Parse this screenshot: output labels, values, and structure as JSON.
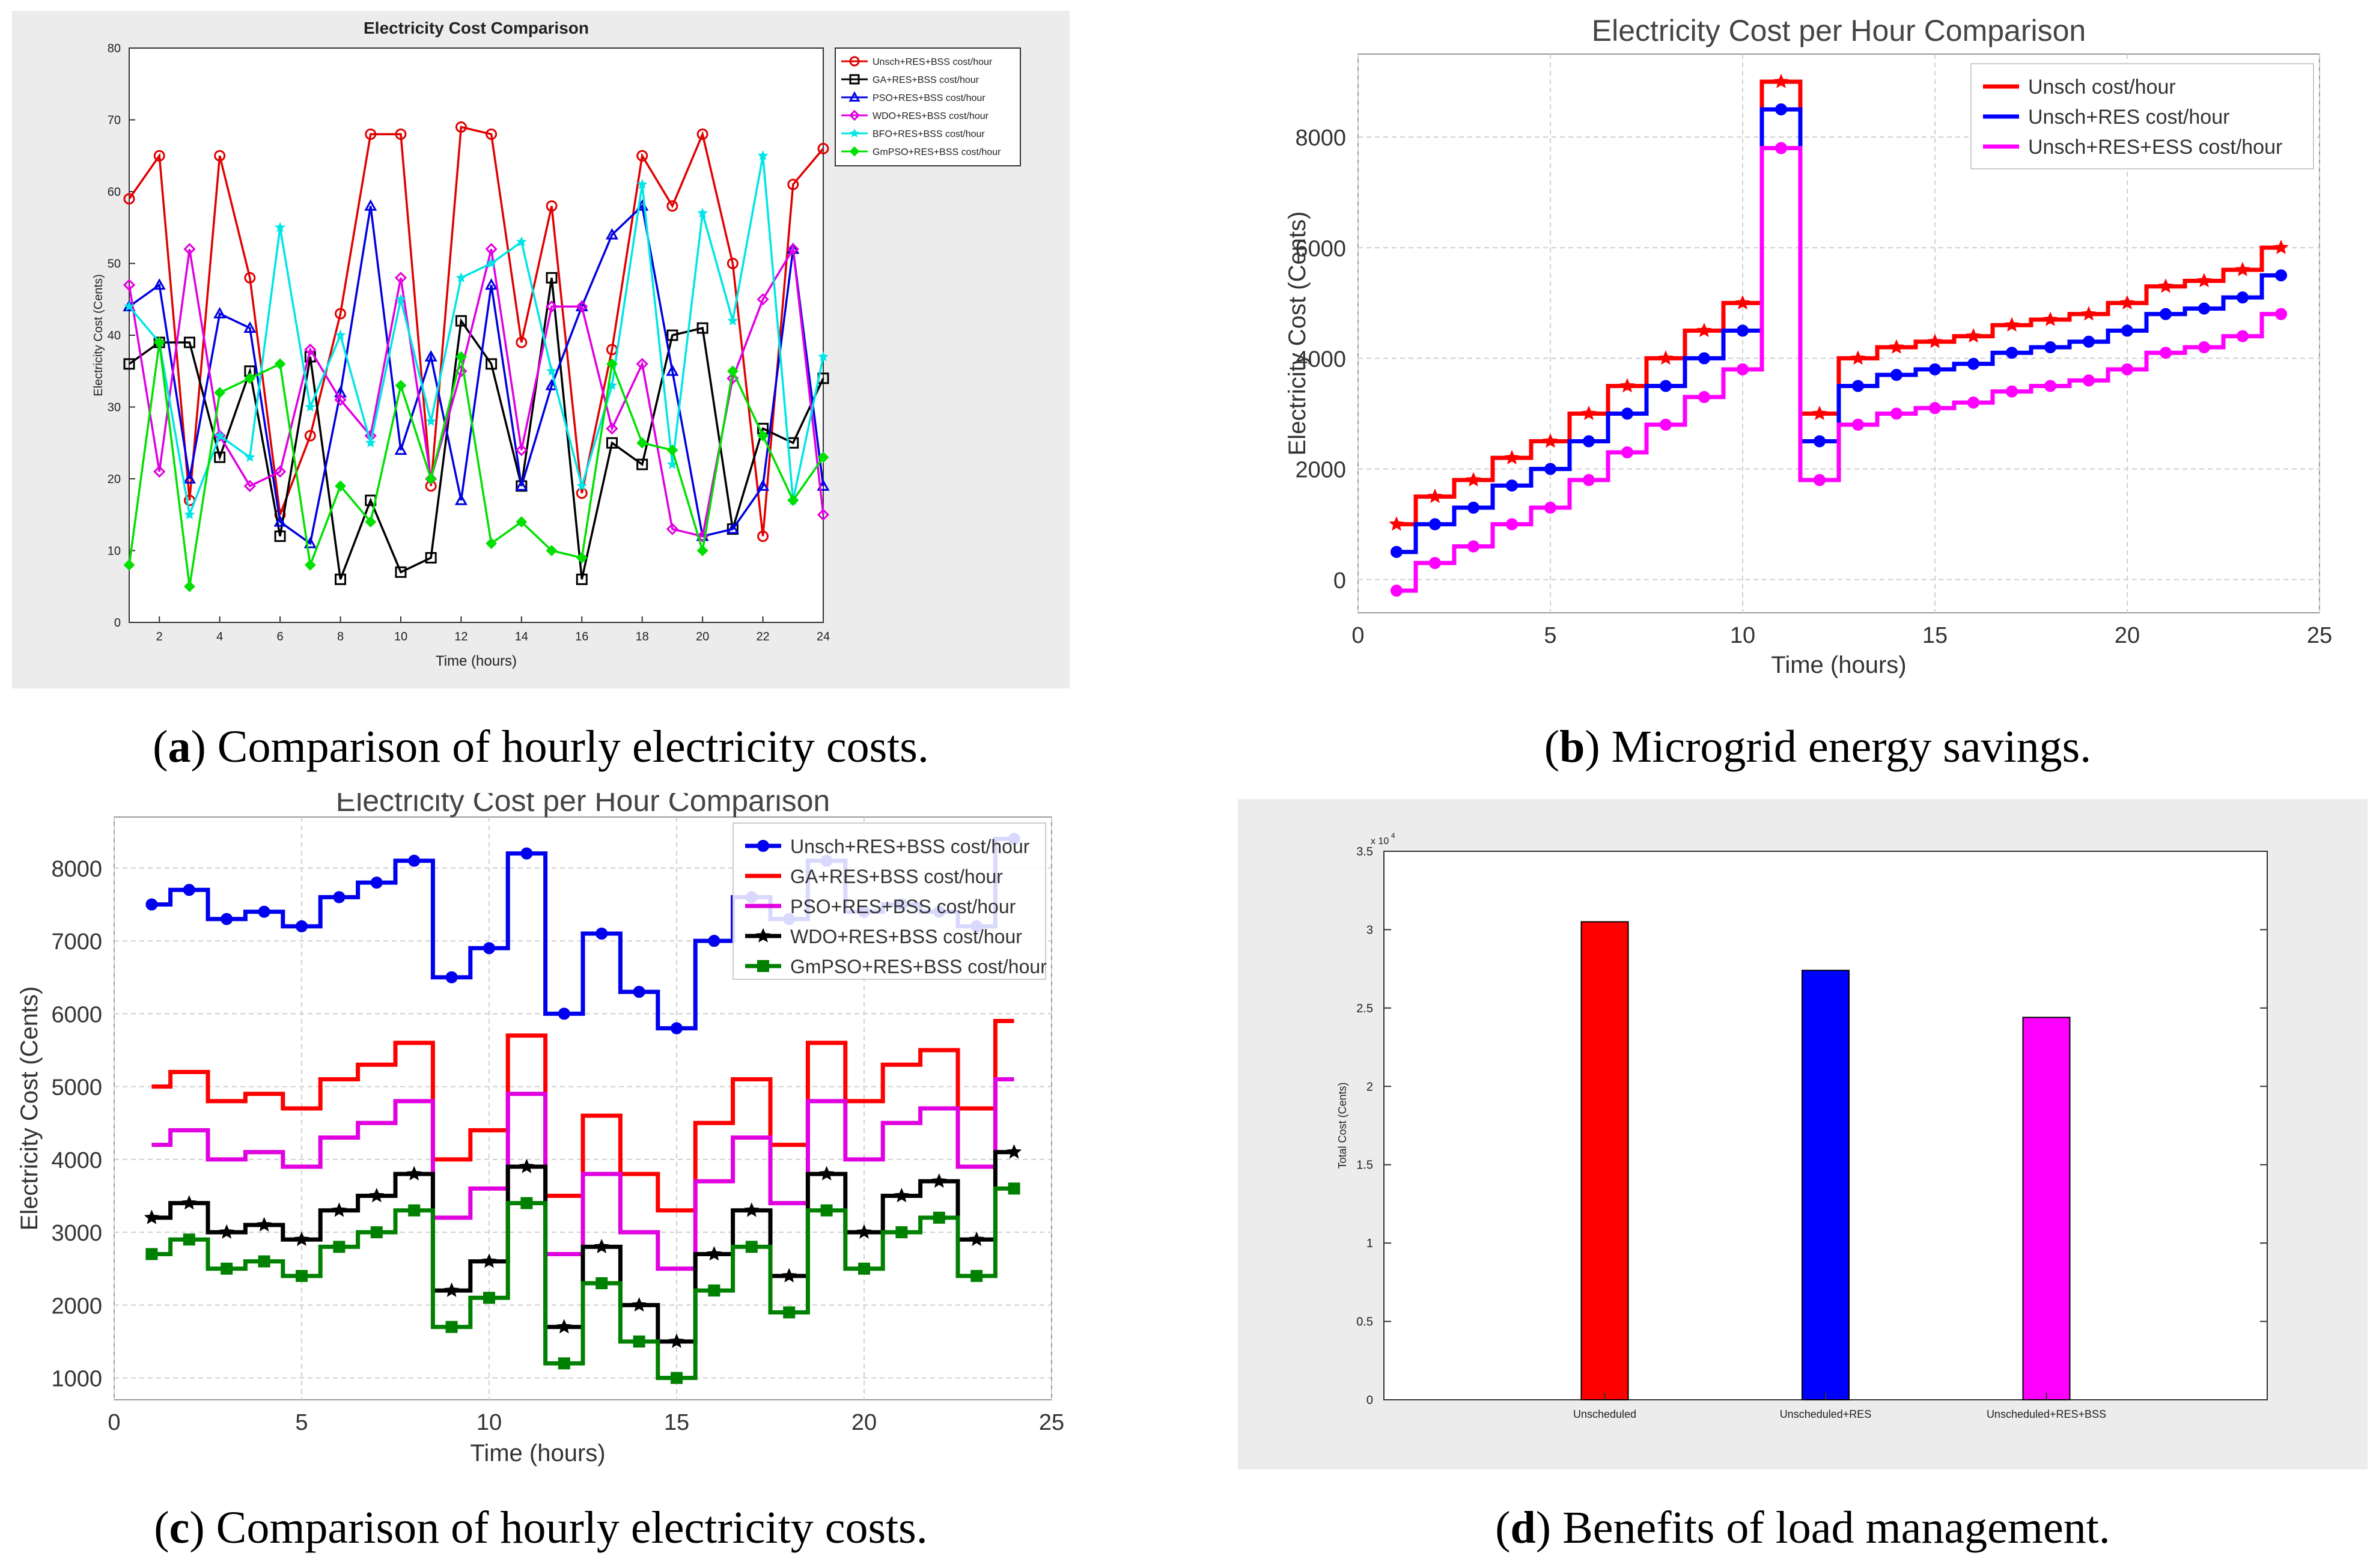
{
  "chart_data": [
    {
      "type": "line",
      "id": "a",
      "title": "Electricity Cost Comparison",
      "xlabel": "Time (hours)",
      "ylabel": "Electricity Cost (Cents)",
      "xlim": [
        1,
        24
      ],
      "ylim": [
        0,
        80
      ],
      "xticks": [
        2,
        4,
        6,
        8,
        10,
        12,
        14,
        16,
        18,
        20,
        22,
        24
      ],
      "yticks": [
        0,
        10,
        20,
        30,
        40,
        50,
        60,
        70,
        80
      ],
      "x": [
        1,
        2,
        3,
        4,
        5,
        6,
        7,
        8,
        9,
        10,
        11,
        12,
        13,
        14,
        15,
        16,
        17,
        18,
        19,
        20,
        21,
        22,
        23,
        24
      ],
      "series": [
        {
          "name": "Unsch+RES+BSS cost/hour",
          "color": "#e00000",
          "marker": "circle",
          "values": [
            59,
            65,
            17,
            65,
            48,
            15,
            26,
            43,
            68,
            68,
            19,
            69,
            68,
            39,
            58,
            18,
            38,
            65,
            58,
            68,
            50,
            12,
            61,
            66
          ]
        },
        {
          "name": "GA+RES+BSS cost/hour",
          "color": "#000000",
          "marker": "square",
          "values": [
            36,
            39,
            39,
            23,
            35,
            12,
            37,
            6,
            17,
            7,
            9,
            42,
            36,
            19,
            48,
            6,
            25,
            22,
            40,
            41,
            13,
            27,
            25,
            34
          ]
        },
        {
          "name": "PSO+RES+BSS cost/hour",
          "color": "#0000e0",
          "marker": "triangle",
          "values": [
            44,
            47,
            20,
            43,
            41,
            14,
            11,
            32,
            58,
            24,
            37,
            17,
            47,
            19,
            33,
            44,
            54,
            58,
            35,
            12,
            13,
            19,
            52,
            19
          ]
        },
        {
          "name": "WDO+RES+BSS cost/hour",
          "color": "#e000e0",
          "marker": "diamond",
          "values": [
            47,
            21,
            52,
            26,
            19,
            21,
            38,
            31,
            26,
            48,
            20,
            35,
            52,
            24,
            44,
            44,
            27,
            36,
            13,
            12,
            34,
            45,
            52,
            15
          ]
        },
        {
          "name": "BFO+RES+BSS cost/hour",
          "color": "#00e5e5",
          "marker": "star",
          "values": [
            44,
            39,
            15,
            26,
            23,
            55,
            30,
            40,
            25,
            45,
            28,
            48,
            50,
            53,
            35,
            19,
            33,
            61,
            22,
            57,
            42,
            65,
            17,
            37
          ]
        },
        {
          "name": "GmPSO+RES+BSS cost/hour",
          "color": "#00e000",
          "marker": "filled-diamond",
          "values": [
            8,
            39,
            5,
            32,
            34,
            36,
            8,
            19,
            14,
            33,
            20,
            37,
            11,
            14,
            10,
            9,
            36,
            25,
            24,
            10,
            35,
            26,
            17,
            23
          ]
        }
      ]
    },
    {
      "type": "line",
      "id": "b",
      "step": true,
      "title": "Electricity Cost per Hour Comparison",
      "xlabel": "Time (hours)",
      "ylabel": "Electricity Cost (Cents)",
      "xlim": [
        0,
        25
      ],
      "ylim": [
        -600,
        9500
      ],
      "xticks": [
        0,
        5,
        10,
        15,
        20,
        25
      ],
      "yticks": [
        0,
        2000,
        4000,
        6000,
        8000
      ],
      "x": [
        1,
        2,
        3,
        4,
        5,
        6,
        7,
        8,
        9,
        10,
        11,
        12,
        13,
        14,
        15,
        16,
        17,
        18,
        19,
        20,
        21,
        22,
        23,
        24
      ],
      "series": [
        {
          "name": "Unsch cost/hour",
          "color": "#ff0000",
          "marker": "star",
          "values": [
            1000,
            1500,
            1800,
            2200,
            2500,
            3000,
            3500,
            4000,
            4500,
            5000,
            9000,
            3000,
            4000,
            4200,
            4300,
            4400,
            4600,
            4700,
            4800,
            5000,
            5300,
            5400,
            5600,
            6000
          ]
        },
        {
          "name": "Unsch+RES cost/hour",
          "color": "#0000ff",
          "marker": "circle",
          "values": [
            500,
            1000,
            1300,
            1700,
            2000,
            2500,
            3000,
            3500,
            4000,
            4500,
            8500,
            2500,
            3500,
            3700,
            3800,
            3900,
            4100,
            4200,
            4300,
            4500,
            4800,
            4900,
            5100,
            5500
          ]
        },
        {
          "name": "Unsch+RES+ESS cost/hour",
          "color": "#ff00ff",
          "marker": "circle",
          "values": [
            -200,
            300,
            600,
            1000,
            1300,
            1800,
            2300,
            2800,
            3300,
            3800,
            7800,
            1800,
            2800,
            3000,
            3100,
            3200,
            3400,
            3500,
            3600,
            3800,
            4100,
            4200,
            4400,
            4800
          ]
        }
      ]
    },
    {
      "type": "line",
      "id": "c",
      "step": true,
      "title": "Electricity Cost per Hour Comparison",
      "xlabel": "Time (hours)",
      "ylabel": "Electricity Cost (Cents)",
      "xlim": [
        0,
        25
      ],
      "ylim": [
        700,
        8700
      ],
      "xticks": [
        0,
        5,
        10,
        15,
        20,
        25
      ],
      "yticks": [
        1000,
        2000,
        3000,
        4000,
        5000,
        6000,
        7000,
        8000
      ],
      "x": [
        1,
        2,
        3,
        4,
        5,
        6,
        7,
        8,
        9,
        10,
        11,
        12,
        13,
        14,
        15,
        16,
        17,
        18,
        19,
        20,
        21,
        22,
        23,
        24
      ],
      "series": [
        {
          "name": "Unsch+RES+BSS cost/hour",
          "color": "#0000ee",
          "marker": "circle",
          "values": [
            7500,
            7700,
            7300,
            7400,
            7200,
            7600,
            7800,
            8100,
            6500,
            6900,
            8200,
            6000,
            7100,
            6300,
            5800,
            7000,
            7600,
            7300,
            8100,
            7400,
            7500,
            7400,
            7200,
            8400
          ]
        },
        {
          "name": "GA+RES+BSS cost/hour",
          "color": "#ff0000",
          "marker": "none",
          "values": [
            5000,
            5200,
            4800,
            4900,
            4700,
            5100,
            5300,
            5600,
            4000,
            4400,
            5700,
            3500,
            4600,
            3800,
            3300,
            4500,
            5100,
            4200,
            5600,
            4800,
            5300,
            5500,
            4700,
            5900
          ]
        },
        {
          "name": "PSO+RES+BSS cost/hour",
          "color": "#e000e0",
          "marker": "none",
          "values": [
            4200,
            4400,
            4000,
            4100,
            3900,
            4300,
            4500,
            4800,
            3200,
            3600,
            4900,
            2700,
            3800,
            3000,
            2500,
            3700,
            4300,
            3400,
            4800,
            4000,
            4500,
            4700,
            3900,
            5100
          ]
        },
        {
          "name": "WDO+RES+BSS cost/hour",
          "color": "#000000",
          "marker": "star",
          "values": [
            3200,
            3400,
            3000,
            3100,
            2900,
            3300,
            3500,
            3800,
            2200,
            2600,
            3900,
            1700,
            2800,
            2000,
            1500,
            2700,
            3300,
            2400,
            3800,
            3000,
            3500,
            3700,
            2900,
            4100
          ]
        },
        {
          "name": "GmPSO+RES+BSS cost/hour",
          "color": "#008000",
          "marker": "square",
          "values": [
            2700,
            2900,
            2500,
            2600,
            2400,
            2800,
            3000,
            3300,
            1700,
            2100,
            3400,
            1200,
            2300,
            1500,
            1000,
            2200,
            2800,
            1900,
            3300,
            2500,
            3000,
            3200,
            2400,
            3600
          ]
        }
      ]
    },
    {
      "type": "bar",
      "id": "d",
      "title": "",
      "xlabel": "",
      "ylabel": "Total Cost (Cents)",
      "ylim": [
        0,
        3.5
      ],
      "yticks": [
        0,
        0.5,
        1,
        1.5,
        2,
        2.5,
        3,
        3.5
      ],
      "yticklabels": [
        "0",
        "0.5",
        "1",
        "1.5",
        "2",
        "2.5",
        "3",
        "3.5"
      ],
      "exponent": "x 10",
      "exponent_power": "4",
      "categories": [
        "Unscheduled",
        "Unscheduled+RES",
        "Unscheduled+RES+BSS"
      ],
      "values": [
        3.05,
        2.74,
        2.44
      ],
      "colors": [
        "#ff0000",
        "#0000ff",
        "#ff00ff"
      ]
    }
  ],
  "captions": {
    "a": {
      "letter": "a",
      "text": " Comparison of hourly electricity costs."
    },
    "b": {
      "letter": "b",
      "text": " Microgrid energy savings."
    },
    "c": {
      "letter": "c",
      "text": " Comparison of hourly electricity costs."
    },
    "d": {
      "letter": "d",
      "text": " Benefits of load management."
    }
  }
}
